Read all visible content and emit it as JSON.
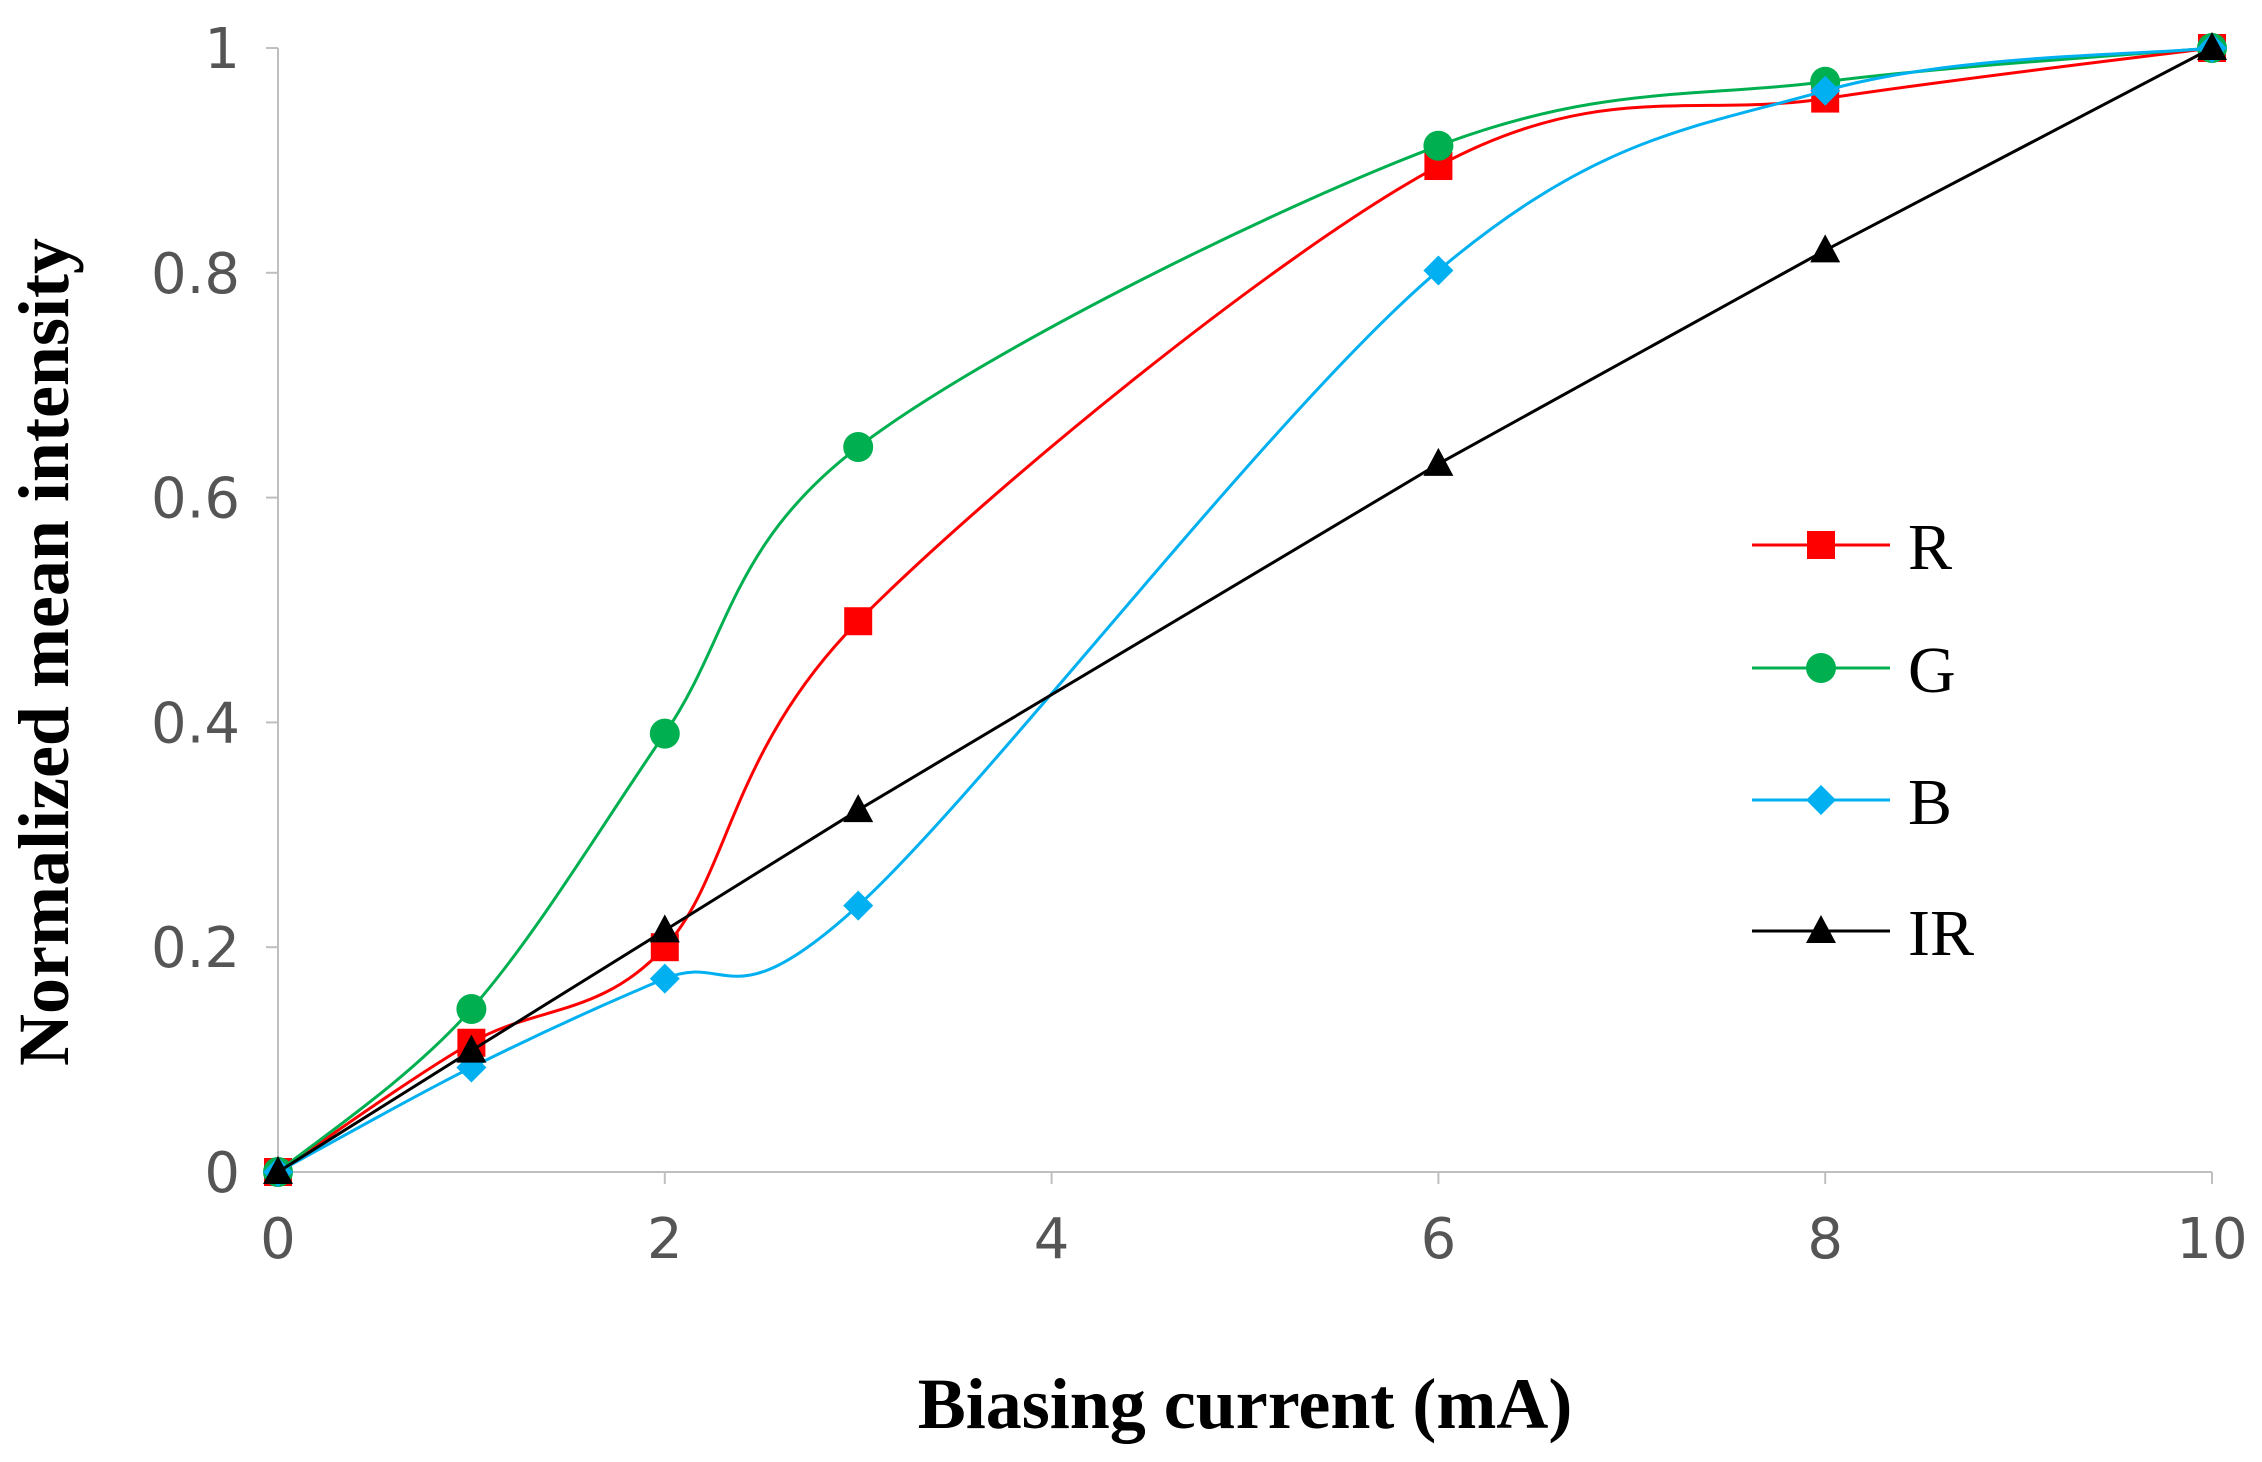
{
  "chart_data": {
    "type": "line",
    "title": "",
    "xlabel": "Biasing current (mA)",
    "ylabel": "Normalized mean intensity",
    "xlim": [
      0,
      10
    ],
    "ylim": [
      0,
      1
    ],
    "xticks": [
      0,
      2,
      4,
      6,
      8,
      10
    ],
    "yticks": [
      0,
      0.2,
      0.4,
      0.6,
      0.8,
      1
    ],
    "grid": false,
    "legend_position": "right-center",
    "series": [
      {
        "name": "R",
        "color": "#ff0000",
        "marker": "square",
        "smooth": true,
        "points": [
          [
            0,
            0.0
          ],
          [
            1,
            0.115
          ],
          [
            2,
            0.2
          ],
          [
            3,
            0.49
          ],
          [
            6,
            0.895
          ],
          [
            8,
            0.955
          ],
          [
            10,
            1.0
          ]
        ]
      },
      {
        "name": "G",
        "color": "#00b050",
        "marker": "circle",
        "smooth": true,
        "points": [
          [
            0,
            0.0
          ],
          [
            1,
            0.145
          ],
          [
            2,
            0.39
          ],
          [
            3,
            0.645
          ],
          [
            6,
            0.913
          ],
          [
            8,
            0.97
          ],
          [
            10,
            1.0
          ]
        ]
      },
      {
        "name": "B",
        "color": "#00b0f0",
        "marker": "diamond",
        "smooth": true,
        "points": [
          [
            0,
            0.0
          ],
          [
            1,
            0.093
          ],
          [
            2,
            0.172
          ],
          [
            3,
            0.237
          ],
          [
            6,
            0.802
          ],
          [
            8,
            0.962
          ],
          [
            10,
            1.0
          ]
        ]
      },
      {
        "name": "IR",
        "color": "#000000",
        "marker": "triangle",
        "smooth": false,
        "points": [
          [
            0,
            0.0
          ],
          [
            1,
            0.108
          ],
          [
            2,
            0.215
          ],
          [
            3,
            0.322
          ],
          [
            6,
            0.63
          ],
          [
            8,
            0.82
          ],
          [
            10,
            1.0
          ]
        ]
      }
    ]
  }
}
